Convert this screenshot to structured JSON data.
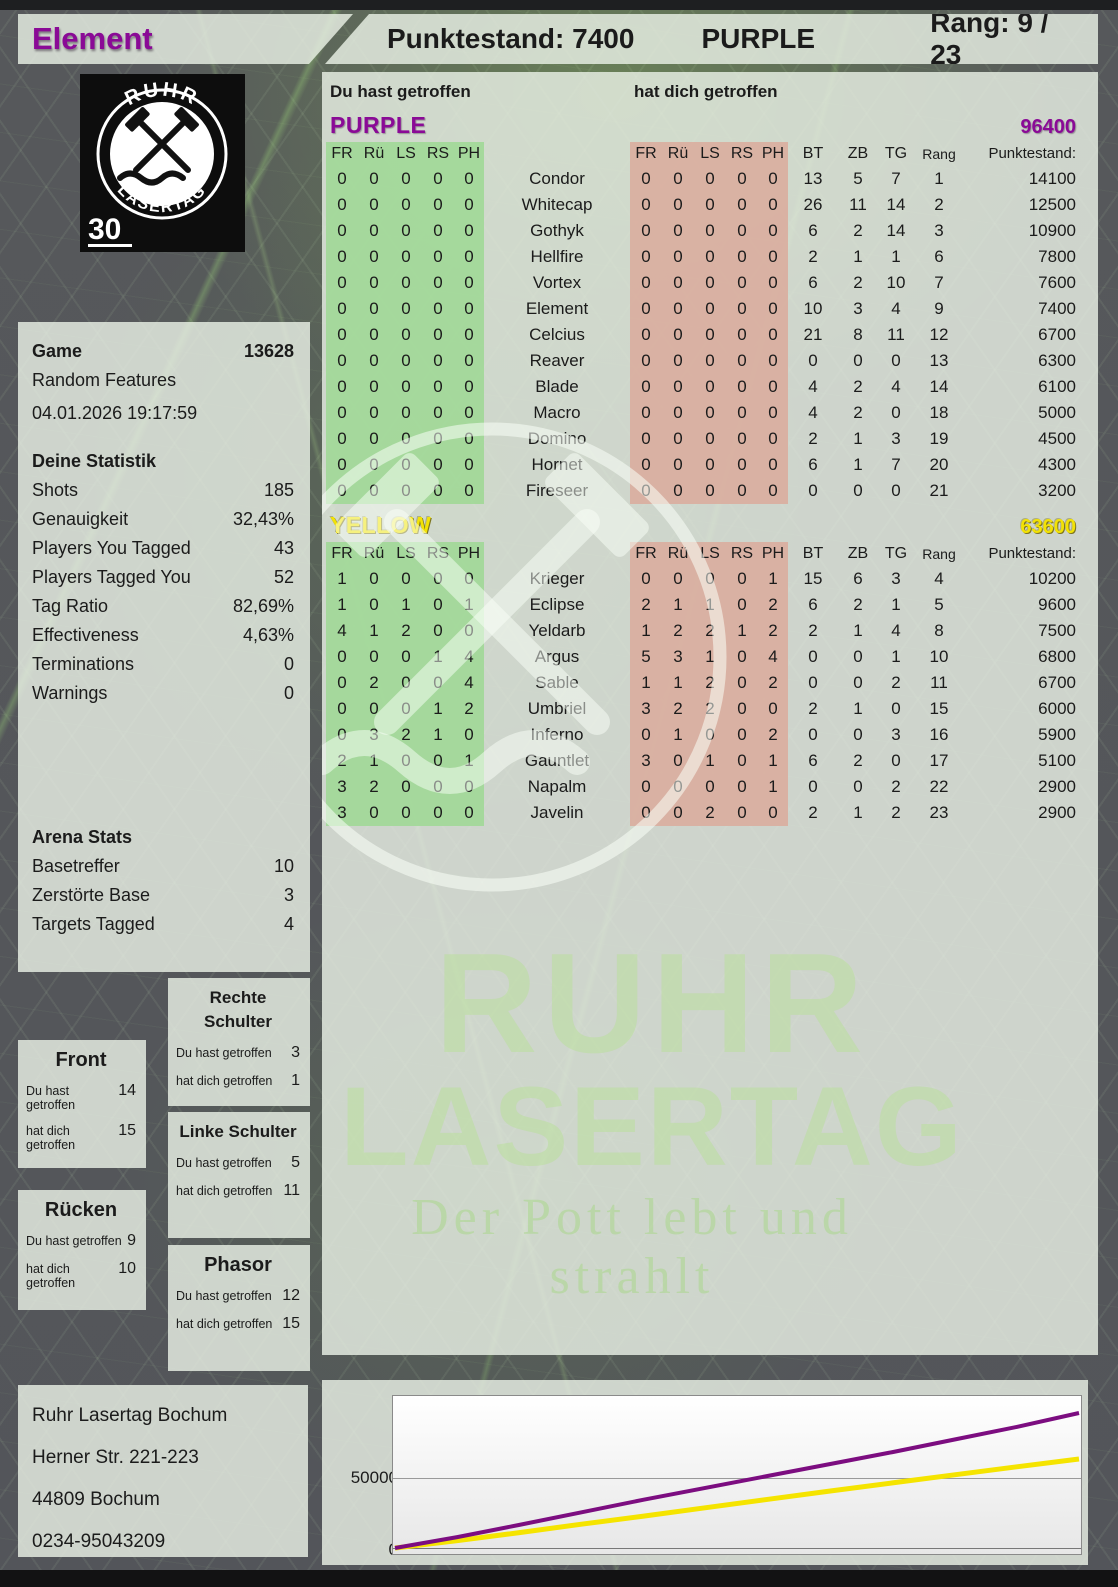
{
  "header": {
    "player": "Element",
    "score_label": "Punktestand: 7400",
    "team": "PURPLE",
    "rank_label": "Rang: 9 / 23"
  },
  "logo": {
    "arc_top": "RUHR",
    "arc_bottom": "LASERTAG",
    "badge": "30"
  },
  "subheader": {
    "you_hit": "Du hast getroffen",
    "hit_you": "hat dich getroffen"
  },
  "hit_cols": [
    "FR",
    "Rü",
    "LS",
    "RS",
    "PH"
  ],
  "stat_cols": [
    "BT",
    "ZB",
    "TG",
    "Rang",
    "Punktestand:"
  ],
  "teams": [
    {
      "name": "PURPLE",
      "score": "96400",
      "color": "#8a0a96",
      "dark_outline": false,
      "rows": [
        {
          "name": "Condor",
          "you": [
            0,
            0,
            0,
            0,
            0
          ],
          "them": [
            0,
            0,
            0,
            0,
            0
          ],
          "bt": 13,
          "zb": 5,
          "tg": 7,
          "rang": 1,
          "points": 14100
        },
        {
          "name": "Whitecap",
          "you": [
            0,
            0,
            0,
            0,
            0
          ],
          "them": [
            0,
            0,
            0,
            0,
            0
          ],
          "bt": 26,
          "zb": 11,
          "tg": 14,
          "rang": 2,
          "points": 12500
        },
        {
          "name": "Gothyk",
          "you": [
            0,
            0,
            0,
            0,
            0
          ],
          "them": [
            0,
            0,
            0,
            0,
            0
          ],
          "bt": 6,
          "zb": 2,
          "tg": 14,
          "rang": 3,
          "points": 10900
        },
        {
          "name": "Hellfire",
          "you": [
            0,
            0,
            0,
            0,
            0
          ],
          "them": [
            0,
            0,
            0,
            0,
            0
          ],
          "bt": 2,
          "zb": 1,
          "tg": 1,
          "rang": 6,
          "points": 7800
        },
        {
          "name": "Vortex",
          "you": [
            0,
            0,
            0,
            0,
            0
          ],
          "them": [
            0,
            0,
            0,
            0,
            0
          ],
          "bt": 6,
          "zb": 2,
          "tg": 10,
          "rang": 7,
          "points": 7600
        },
        {
          "name": "Element",
          "you": [
            0,
            0,
            0,
            0,
            0
          ],
          "them": [
            0,
            0,
            0,
            0,
            0
          ],
          "bt": 10,
          "zb": 3,
          "tg": 4,
          "rang": 9,
          "points": 7400
        },
        {
          "name": "Celcius",
          "you": [
            0,
            0,
            0,
            0,
            0
          ],
          "them": [
            0,
            0,
            0,
            0,
            0
          ],
          "bt": 21,
          "zb": 8,
          "tg": 11,
          "rang": 12,
          "points": 6700
        },
        {
          "name": "Reaver",
          "you": [
            0,
            0,
            0,
            0,
            0
          ],
          "them": [
            0,
            0,
            0,
            0,
            0
          ],
          "bt": 0,
          "zb": 0,
          "tg": 0,
          "rang": 13,
          "points": 6300
        },
        {
          "name": "Blade",
          "you": [
            0,
            0,
            0,
            0,
            0
          ],
          "them": [
            0,
            0,
            0,
            0,
            0
          ],
          "bt": 4,
          "zb": 2,
          "tg": 4,
          "rang": 14,
          "points": 6100
        },
        {
          "name": "Macro",
          "you": [
            0,
            0,
            0,
            0,
            0
          ],
          "them": [
            0,
            0,
            0,
            0,
            0
          ],
          "bt": 4,
          "zb": 2,
          "tg": 0,
          "rang": 18,
          "points": 5000
        },
        {
          "name": "Domino",
          "you": [
            0,
            0,
            0,
            0,
            0
          ],
          "them": [
            0,
            0,
            0,
            0,
            0
          ],
          "bt": 2,
          "zb": 1,
          "tg": 3,
          "rang": 19,
          "points": 4500
        },
        {
          "name": "Hornet",
          "you": [
            0,
            0,
            0,
            0,
            0
          ],
          "them": [
            0,
            0,
            0,
            0,
            0
          ],
          "bt": 6,
          "zb": 1,
          "tg": 7,
          "rang": 20,
          "points": 4300
        },
        {
          "name": "Fireseer",
          "you": [
            0,
            0,
            0,
            0,
            0
          ],
          "them": [
            0,
            0,
            0,
            0,
            0
          ],
          "bt": 0,
          "zb": 0,
          "tg": 0,
          "rang": 21,
          "points": 3200
        }
      ]
    },
    {
      "name": "YELLOW",
      "score": "63600",
      "color": "#f2e205",
      "dark_outline": true,
      "rows": [
        {
          "name": "Krieger",
          "you": [
            1,
            0,
            0,
            0,
            0
          ],
          "them": [
            0,
            0,
            0,
            0,
            1
          ],
          "bt": 15,
          "zb": 6,
          "tg": 3,
          "rang": 4,
          "points": 10200
        },
        {
          "name": "Eclipse",
          "you": [
            1,
            0,
            1,
            0,
            1
          ],
          "them": [
            2,
            1,
            1,
            0,
            2
          ],
          "bt": 6,
          "zb": 2,
          "tg": 1,
          "rang": 5,
          "points": 9600
        },
        {
          "name": "Yeldarb",
          "you": [
            4,
            1,
            2,
            0,
            0
          ],
          "them": [
            1,
            2,
            2,
            1,
            2
          ],
          "bt": 2,
          "zb": 1,
          "tg": 4,
          "rang": 8,
          "points": 7500
        },
        {
          "name": "Argus",
          "you": [
            0,
            0,
            0,
            1,
            4
          ],
          "them": [
            5,
            3,
            1,
            0,
            4
          ],
          "bt": 0,
          "zb": 0,
          "tg": 1,
          "rang": 10,
          "points": 6800
        },
        {
          "name": "Sable",
          "you": [
            0,
            2,
            0,
            0,
            4
          ],
          "them": [
            1,
            1,
            2,
            0,
            2
          ],
          "bt": 0,
          "zb": 0,
          "tg": 2,
          "rang": 11,
          "points": 6700
        },
        {
          "name": "Umbriel",
          "you": [
            0,
            0,
            0,
            1,
            2
          ],
          "them": [
            3,
            2,
            2,
            0,
            0
          ],
          "bt": 2,
          "zb": 1,
          "tg": 0,
          "rang": 15,
          "points": 6000
        },
        {
          "name": "Inferno",
          "you": [
            0,
            3,
            2,
            1,
            0
          ],
          "them": [
            0,
            1,
            0,
            0,
            2
          ],
          "bt": 0,
          "zb": 0,
          "tg": 3,
          "rang": 16,
          "points": 5900
        },
        {
          "name": "Gauntlet",
          "you": [
            2,
            1,
            0,
            0,
            1
          ],
          "them": [
            3,
            0,
            1,
            0,
            1
          ],
          "bt": 6,
          "zb": 2,
          "tg": 0,
          "rang": 17,
          "points": 5100
        },
        {
          "name": "Napalm",
          "you": [
            3,
            2,
            0,
            0,
            0
          ],
          "them": [
            0,
            0,
            0,
            0,
            1
          ],
          "bt": 0,
          "zb": 0,
          "tg": 2,
          "rang": 22,
          "points": 2900
        },
        {
          "name": "Javelin",
          "you": [
            3,
            0,
            0,
            0,
            0
          ],
          "them": [
            0,
            0,
            2,
            0,
            0
          ],
          "bt": 2,
          "zb": 1,
          "tg": 2,
          "rang": 23,
          "points": 2900
        }
      ]
    }
  ],
  "sidebar": {
    "game": {
      "label": "Game",
      "number": "13628",
      "mode": "Random Features",
      "datetime": "04.01.2026 19:17:59"
    },
    "stats_title": "Deine Statistik",
    "stats": [
      {
        "label": "Shots",
        "value": "185"
      },
      {
        "label": "Genauigkeit",
        "value": "32,43%"
      },
      {
        "label": "Players You Tagged",
        "value": "43"
      },
      {
        "label": "Players Tagged You",
        "value": "52"
      },
      {
        "label": "Tag Ratio",
        "value": "82,69%"
      },
      {
        "label": "Effectiveness",
        "value": "4,63%"
      },
      {
        "label": "Terminations",
        "value": "0"
      },
      {
        "label": "Warnings",
        "value": "0"
      }
    ],
    "arena_title": "Arena Stats",
    "arena": [
      {
        "label": "Basetreffer",
        "value": "10"
      },
      {
        "label": "Zerstörte Base",
        "value": "3"
      },
      {
        "label": "Targets Tagged",
        "value": "4"
      }
    ]
  },
  "body_parts": [
    {
      "title": "Rechte Schulter",
      "you": "3",
      "them": "1"
    },
    {
      "title": "Front",
      "you": "14",
      "them": "15"
    },
    {
      "title": "Linke Schulter",
      "you": "5",
      "them": "11"
    },
    {
      "title": "Rücken",
      "you": "9",
      "them": "10"
    },
    {
      "title": "Phasor",
      "you": "12",
      "them": "15"
    }
  ],
  "bp_labels": {
    "you": "Du hast getroffen",
    "them": "hat dich getroffen"
  },
  "address": [
    "Ruhr Lasertag Bochum",
    "Herner Str. 221-223",
    "44809 Bochum",
    "0234-95043209"
  ],
  "watermark": {
    "line1": "RUHR",
    "line2": "LASERTAG",
    "tagline": "Der Pott lebt und strahlt"
  },
  "chart_data": {
    "type": "line",
    "title": "",
    "xlabel": "",
    "ylabel": "",
    "ylim": [
      0,
      105000
    ],
    "grid": "horizontal at 0 and 50000",
    "yticks": [
      {
        "value": 50000,
        "label": "50000"
      },
      {
        "value": 0,
        "label": "0"
      }
    ],
    "x_unit": "game time (normalized 0-1, no axis labels shown)",
    "x": [
      0,
      0.09,
      0.18,
      0.27,
      0.36,
      0.45,
      0.55,
      0.64,
      0.73,
      0.82,
      0.91,
      1.0
    ],
    "series": [
      {
        "name": "PURPLE",
        "color": "#7c0d80",
        "width": 4,
        "values": [
          0,
          7800,
          16500,
          25500,
          34500,
          43000,
          51500,
          60000,
          68500,
          77500,
          86500,
          96400
        ]
      },
      {
        "name": "YELLOW",
        "color": "#f5e400",
        "width": 5,
        "values": [
          0,
          5200,
          11000,
          17000,
          22800,
          28800,
          34800,
          40700,
          46500,
          52300,
          58000,
          63600
        ]
      }
    ],
    "legend": "none"
  }
}
